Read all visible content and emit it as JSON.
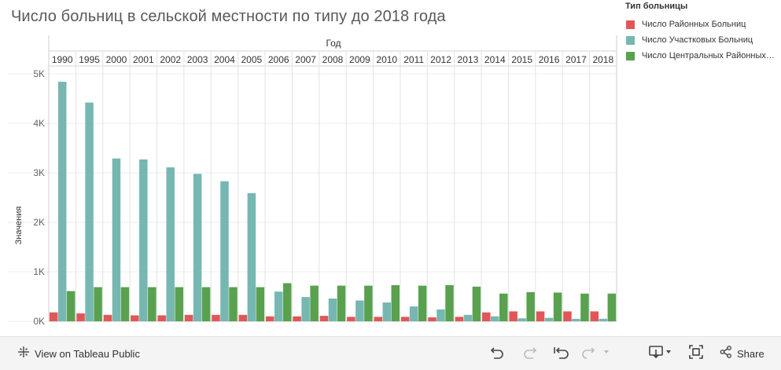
{
  "title": "Число больниц в сельской местности по типу до 2018 года",
  "legend": {
    "title": "Тип больницы",
    "items": [
      {
        "label": "Число Районных Больниц",
        "color": "#e15759"
      },
      {
        "label": "Число Участковых Больниц",
        "color": "#76b7b2"
      },
      {
        "label": "Число Центральных Районных Больниц",
        "color": "#59a14f"
      }
    ]
  },
  "toolbar": {
    "view_label": "View on Tableau Public",
    "share_label": "Share",
    "icons": [
      "tableau-icon",
      "undo-icon",
      "redo-icon",
      "revert-icon",
      "pause-icon",
      "download-icon",
      "fullscreen-icon",
      "share-icon"
    ]
  },
  "chart_data": {
    "type": "bar",
    "title": "Число больниц в сельской местности по типу до 2018 года",
    "xlabel": "Год",
    "ylabel": "Значения",
    "ylim": [
      0,
      5000
    ],
    "yticks": [
      "0K",
      "1K",
      "2K",
      "3K",
      "4K",
      "5K"
    ],
    "grid": true,
    "legend_position": "top-right",
    "categories": [
      "1990",
      "1995",
      "2000",
      "2001",
      "2002",
      "2003",
      "2004",
      "2005",
      "2006",
      "2007",
      "2008",
      "2009",
      "2010",
      "2011",
      "2012",
      "2013",
      "2014",
      "2015",
      "2016",
      "2017",
      "2018"
    ],
    "series": [
      {
        "name": "Число Районных Больниц",
        "color": "#e15759",
        "values": [
          180,
          160,
          130,
          120,
          120,
          130,
          130,
          130,
          100,
          100,
          110,
          90,
          90,
          90,
          80,
          90,
          180,
          200,
          200,
          200,
          200
        ]
      },
      {
        "name": "Число Участковых Больниц",
        "color": "#76b7b2",
        "values": [
          4840,
          4420,
          3290,
          3270,
          3110,
          2980,
          2830,
          2590,
          600,
          490,
          460,
          420,
          380,
          300,
          240,
          130,
          100,
          60,
          70,
          50,
          50
        ]
      },
      {
        "name": "Число Центральных Районных Больниц",
        "color": "#59a14f",
        "values": [
          610,
          690,
          690,
          690,
          690,
          690,
          690,
          690,
          770,
          720,
          720,
          720,
          730,
          720,
          730,
          700,
          560,
          590,
          580,
          560,
          560
        ]
      }
    ]
  }
}
